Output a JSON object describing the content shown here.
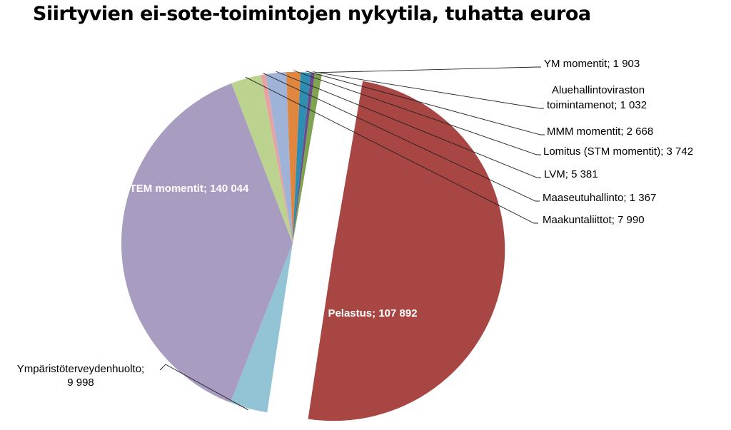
{
  "chart_data": {
    "type": "pie",
    "title": "Siirtyvien ei-sote-toimintojen nykytila, tuhatta euroa",
    "slices": [
      {
        "name": "TEM momentit",
        "value": 140044,
        "value_label": "140 044",
        "color": "#a84644",
        "exploded": true,
        "label_inside": true
      },
      {
        "name": "Ympäristöterveydenhuolto",
        "value": 9998,
        "value_label": "9 998",
        "color": "#93c4d6",
        "exploded": false,
        "label_inside": false
      },
      {
        "name": "Pelastus",
        "value": 107892,
        "value_label": "107 892",
        "color": "#a89cc0",
        "exploded": false,
        "label_inside": true
      },
      {
        "name": "Maakuntaliittot",
        "value": 7990,
        "value_label": "7 990",
        "color": "#bcd28f",
        "exploded": false,
        "label_inside": false
      },
      {
        "name": "Maaseutuhallinto",
        "value": 1367,
        "value_label": "1 367",
        "color": "#e5a4a2",
        "exploded": false,
        "label_inside": false
      },
      {
        "name": "LVM",
        "value": 5381,
        "value_label": "5 381",
        "color": "#9fb3d9",
        "exploded": false,
        "label_inside": false
      },
      {
        "name": "Lomitus (STM momentit)",
        "value": 3742,
        "value_label": "3 742",
        "color": "#e0863f",
        "exploded": false,
        "label_inside": false
      },
      {
        "name": "MMM momentit",
        "value": 2668,
        "value_label": "2 668",
        "color": "#2e8db0",
        "exploded": false,
        "label_inside": false
      },
      {
        "name": "Aluehallintoviraston toimintamenot",
        "value": 1032,
        "value_label": "1 032",
        "color": "#6a4e8c",
        "exploded": false,
        "label_inside": false
      },
      {
        "name": "YM momentit",
        "value": 1903,
        "value_label": "1 903",
        "color": "#7fa34e",
        "exploded": false,
        "label_inside": false
      }
    ]
  }
}
